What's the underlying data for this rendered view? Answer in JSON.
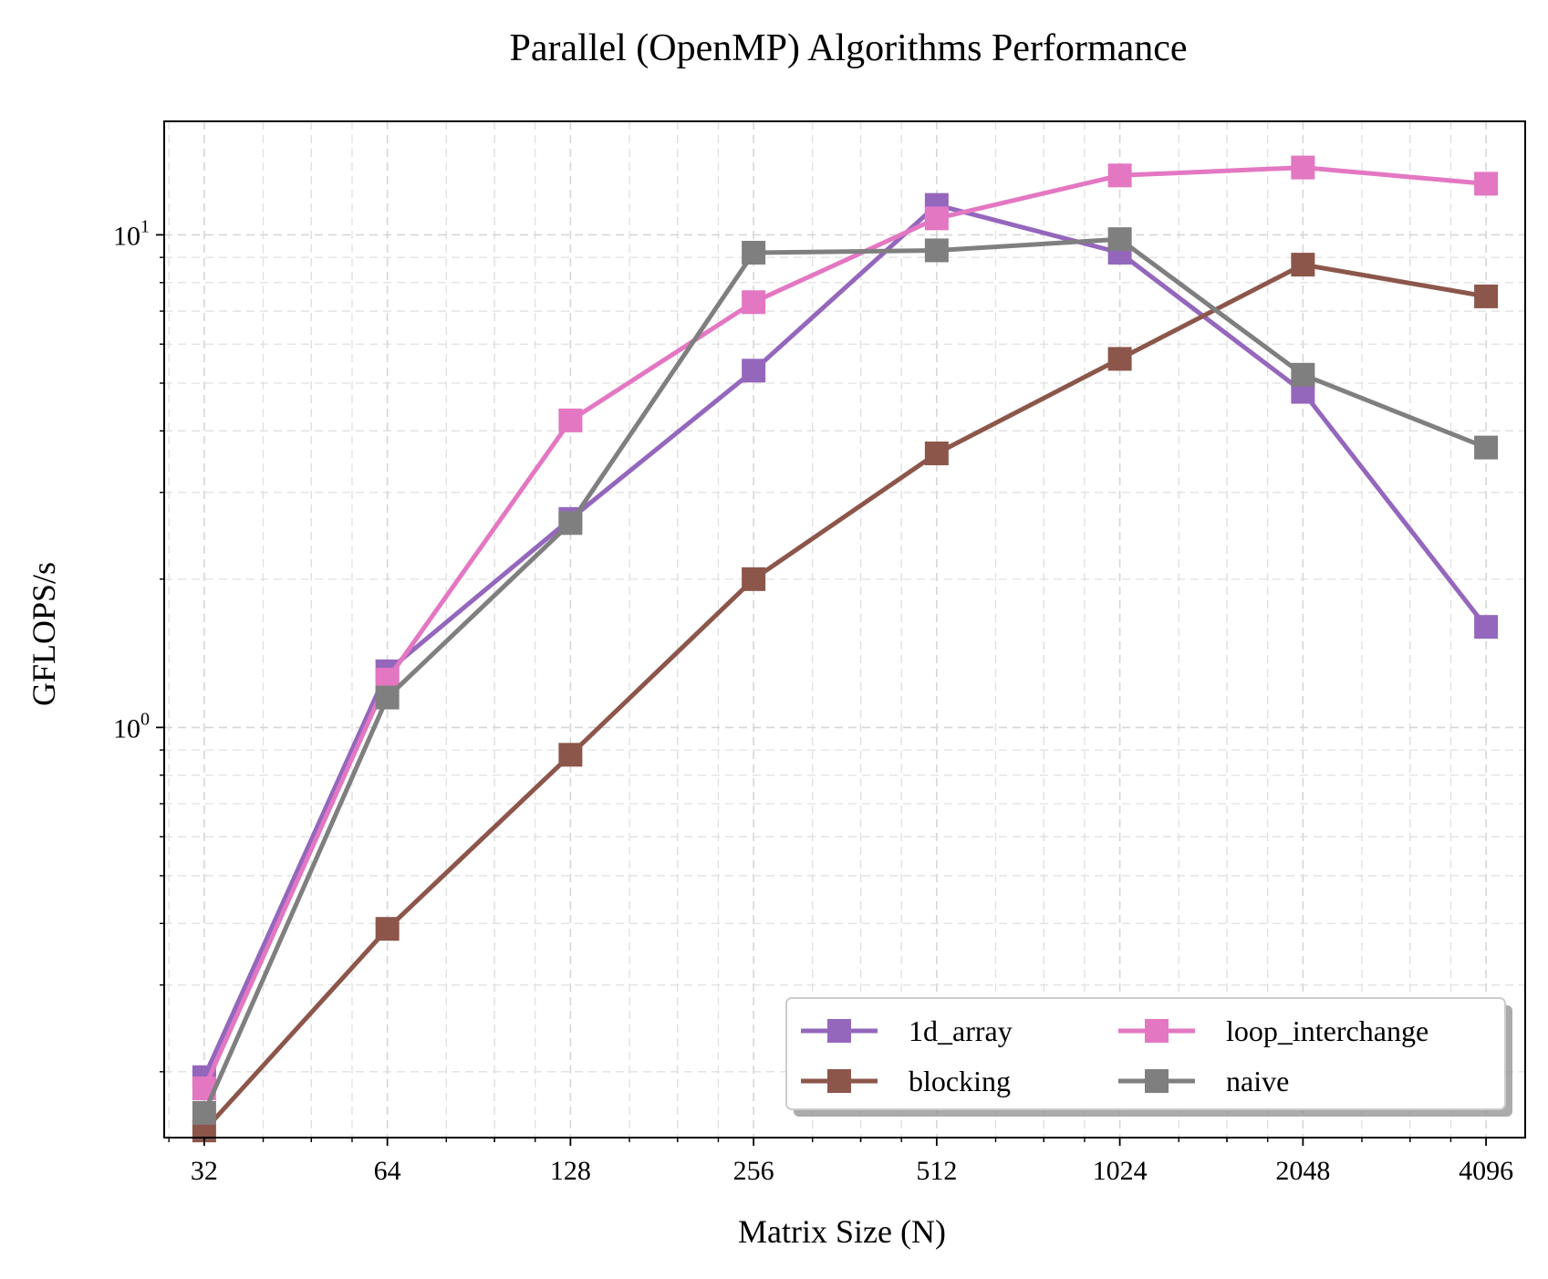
{
  "chart_data": {
    "type": "line",
    "title": "Parallel (OpenMP) Algorithms Performance",
    "xlabel": "Matrix Size (N)",
    "ylabel": "GFLOPS/s",
    "x_scale": "log2",
    "y_scale": "log10",
    "x": [
      32,
      64,
      128,
      256,
      512,
      1024,
      2048,
      4096
    ],
    "x_tick_labels": [
      "32",
      "64",
      "128",
      "256",
      "512",
      "1024",
      "2048",
      "4096"
    ],
    "y_tick_labels": [
      {
        "value": 1,
        "base": "10",
        "exp": "0"
      },
      {
        "value": 10,
        "base": "10",
        "exp": "1"
      }
    ],
    "xlim": [
      27.5,
      4750
    ],
    "ylim": [
      0.147,
      17.0
    ],
    "grid": true,
    "legend_position": "lower-right",
    "legend_columns": 2,
    "marker": "square",
    "series": [
      {
        "name": "1d_array",
        "color": "#9467bd",
        "values": [
          0.195,
          1.3,
          2.65,
          5.3,
          11.5,
          9.2,
          4.8,
          1.6
        ]
      },
      {
        "name": "blocking",
        "color": "#8c564b",
        "values": [
          0.152,
          0.39,
          0.88,
          2.0,
          3.6,
          5.6,
          8.7,
          7.5
        ]
      },
      {
        "name": "loop_interchange",
        "color": "#e377c2",
        "values": [
          0.185,
          1.25,
          4.2,
          7.3,
          10.8,
          13.2,
          13.7,
          12.7
        ]
      },
      {
        "name": "naive",
        "color": "#7f7f7f",
        "values": [
          0.165,
          1.15,
          2.6,
          9.2,
          9.3,
          9.8,
          5.2,
          3.7
        ]
      }
    ]
  }
}
